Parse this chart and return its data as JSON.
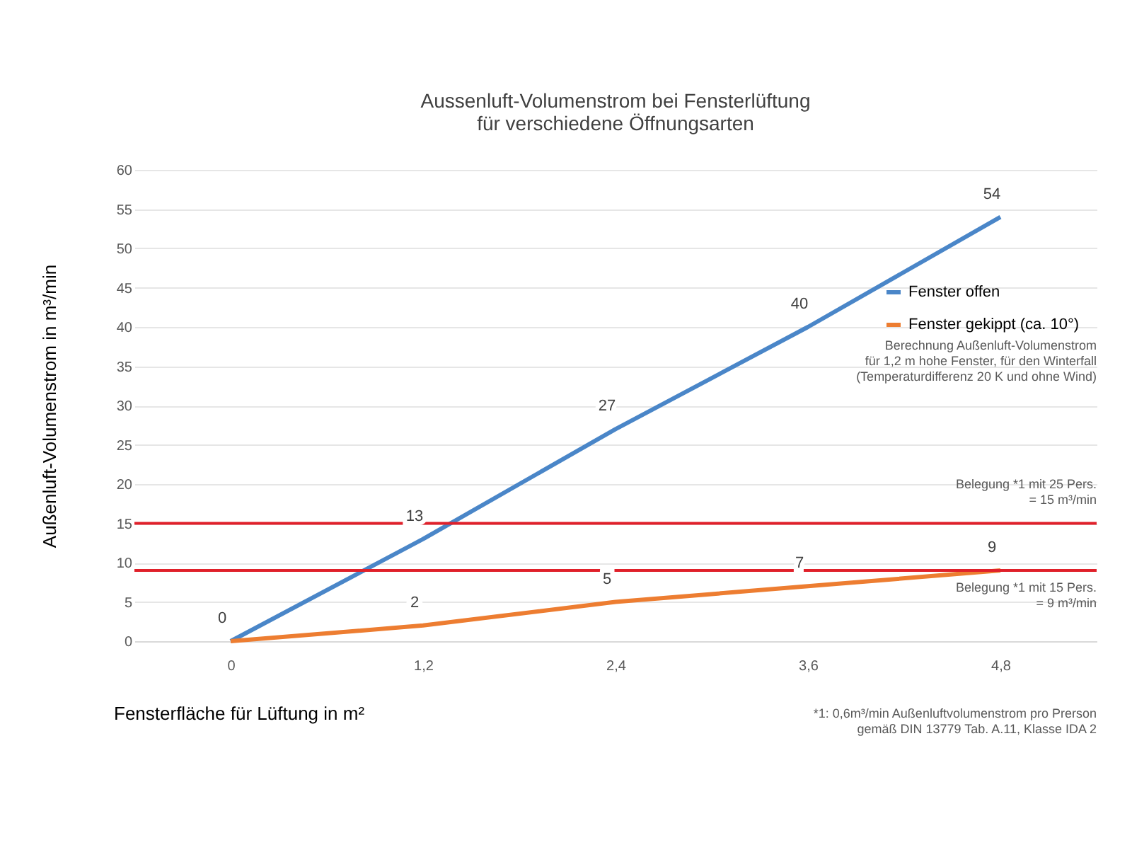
{
  "chart_data": {
    "type": "line",
    "title": "Aussenluft-Volumenstrom bei Fensterlüftung\nfür verschiedene Öffnungsarten",
    "xlabel": "Fensterfläche für Lüftung in m²",
    "ylabel": "Außenluft-Volumenstrom in m³/min",
    "categories": [
      "0",
      "1,2",
      "2,4",
      "3,6",
      "4,8"
    ],
    "series": [
      {
        "name": "Fenster offen",
        "color": "#4a86c8",
        "values": [
          0,
          13,
          27,
          40,
          54
        ],
        "value_labels": [
          "0",
          "13",
          "27",
          "40",
          "54"
        ]
      },
      {
        "name": "Fenster gekippt (ca. 10°)",
        "color": "#ed7d31",
        "values": [
          0,
          2,
          5,
          7,
          9
        ],
        "value_labels": [
          null,
          "2",
          "5",
          "7",
          "9"
        ]
      }
    ],
    "ylim": [
      0,
      60
    ],
    "yticks": [
      0,
      5,
      10,
      15,
      20,
      25,
      30,
      35,
      40,
      45,
      50,
      55,
      60
    ],
    "grid": "y",
    "legend": "right",
    "ref_lines": [
      {
        "axis": "y",
        "value": 15,
        "label": "Belegung *1 mit 25 Pers.\n= 15 m³/min",
        "color": "#e0202a"
      },
      {
        "axis": "y",
        "value": 9,
        "label": "Belegung *1 mit 15 Pers.\n= 9 m³/min",
        "color": "#e0202a"
      }
    ],
    "annotations": [
      "Berechnung Außenluft-Volumenstrom\nfür 1,2 m hohe Fenster, für den Winterfall\n(Temperaturdifferenz 20 K und ohne Wind)",
      "*1: 0,6m³/min Außenluftvolumenstrom pro Prerson\ngemäß DIN 13779 Tab. A.11, Klasse IDA 2"
    ]
  }
}
